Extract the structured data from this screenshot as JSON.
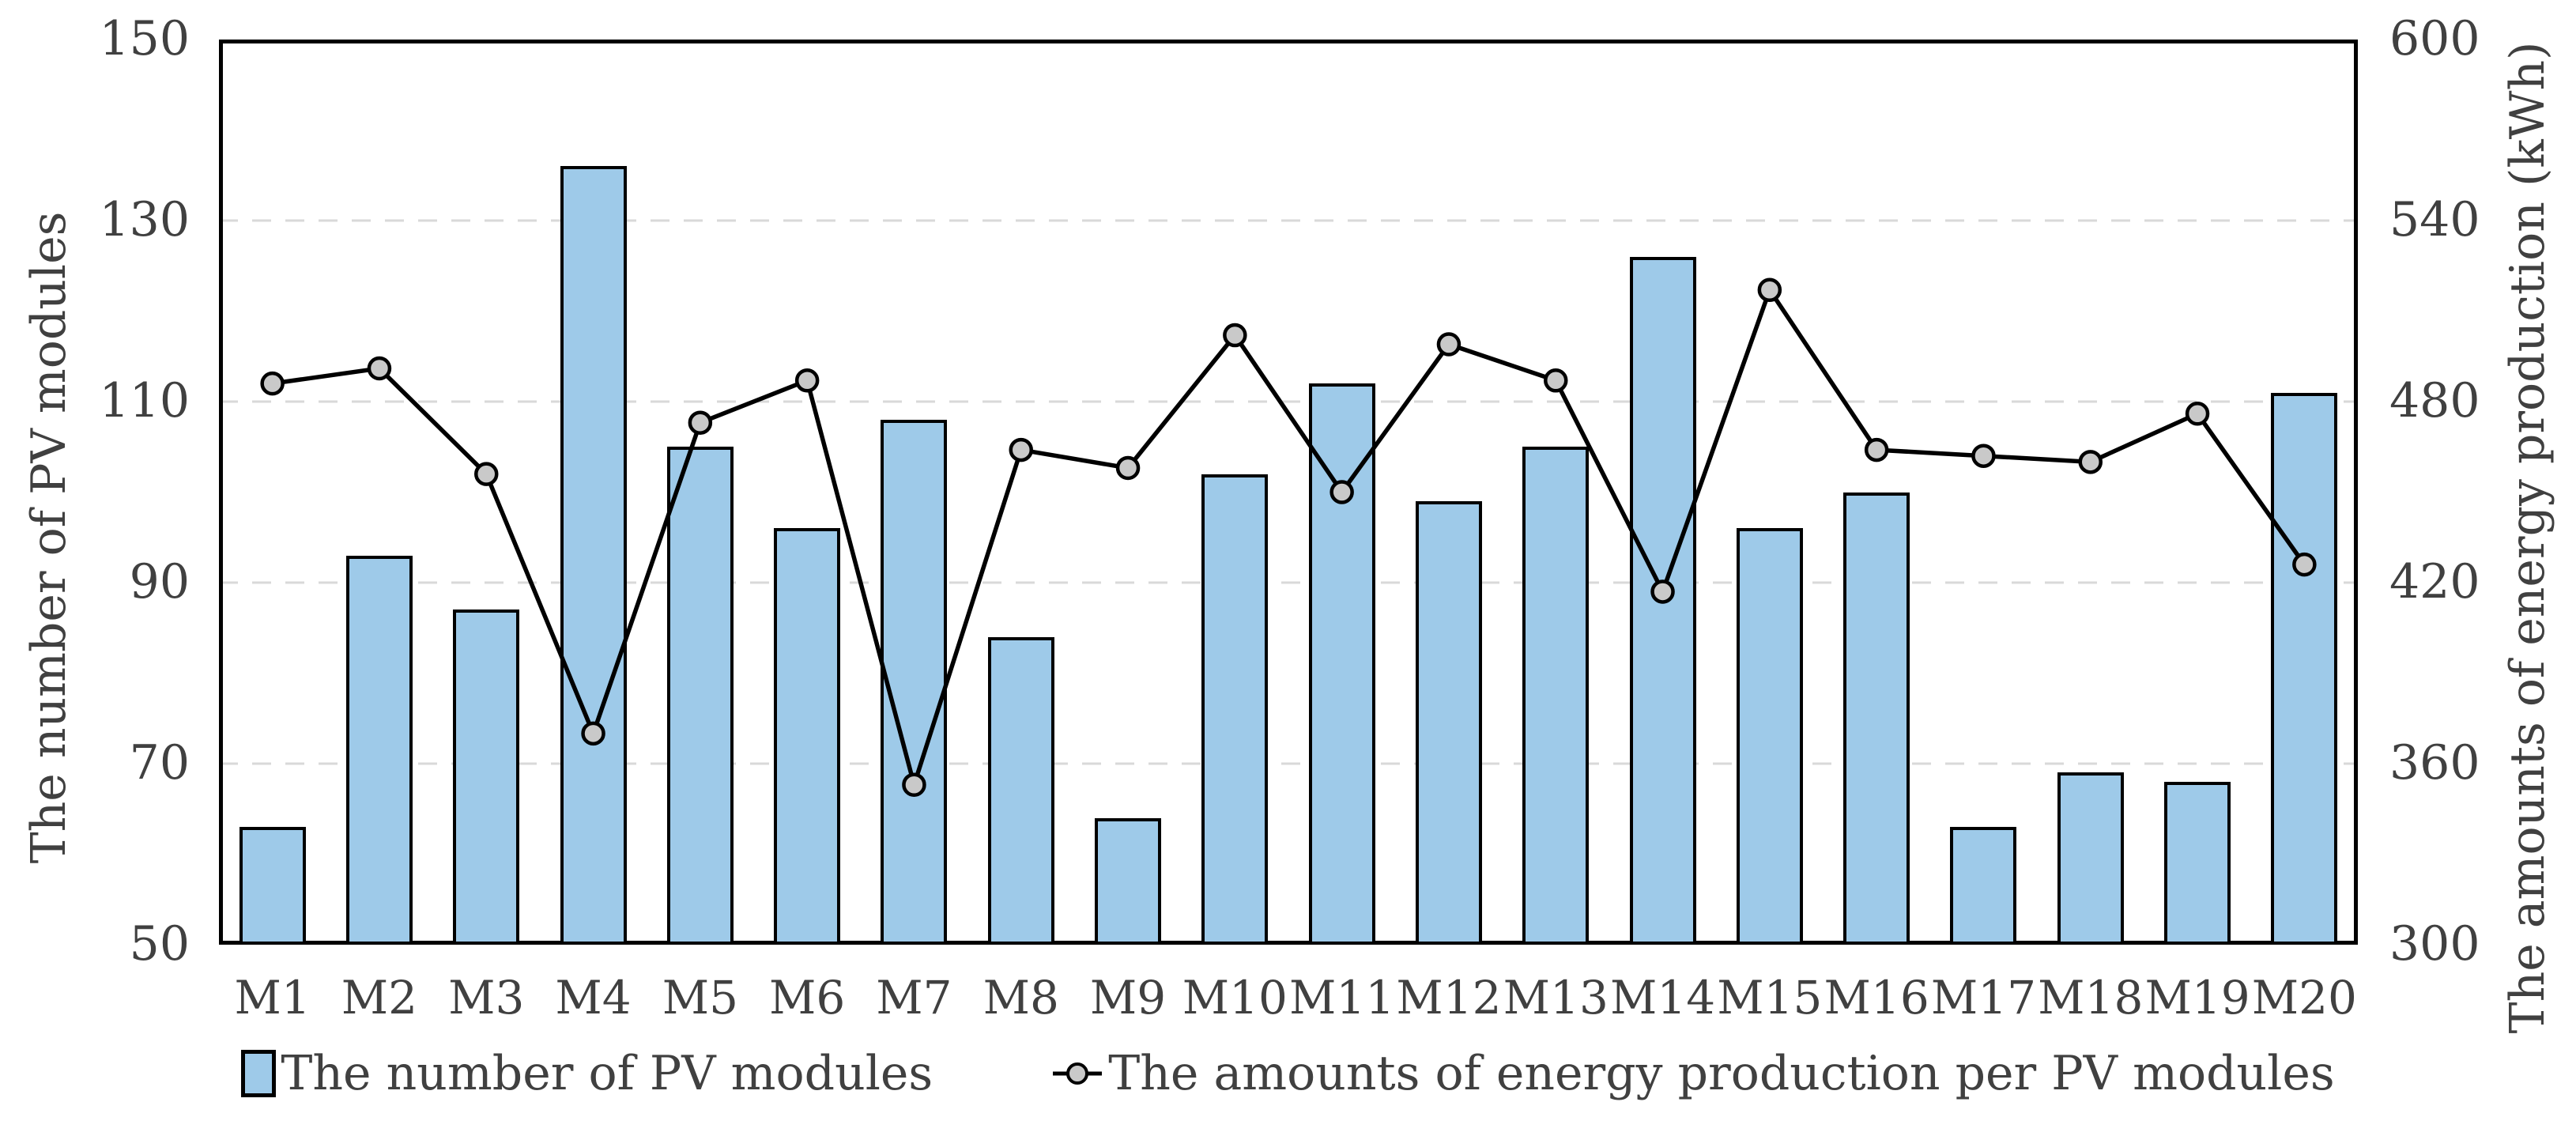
{
  "chart_data": {
    "type": "combo-bar-line",
    "categories": [
      "M1",
      "M2",
      "M3",
      "M4",
      "M5",
      "M6",
      "M7",
      "M8",
      "M9",
      "M10",
      "M11",
      "M12",
      "M13",
      "M14",
      "M15",
      "M16",
      "M17",
      "M18",
      "M19",
      "M20"
    ],
    "series": [
      {
        "name": "The number of PV modules",
        "type": "bar",
        "axis": "left",
        "values": [
          63,
          93,
          87,
          136,
          105,
          96,
          108,
          84,
          64,
          102,
          112,
          99,
          105,
          126,
          96,
          100,
          63,
          69,
          68,
          111
        ]
      },
      {
        "name": "The amounts of energy production per PV modules",
        "type": "line",
        "axis": "right",
        "values": [
          486,
          491,
          456,
          370,
          473,
          487,
          353,
          464,
          458,
          502,
          450,
          499,
          487,
          417,
          517,
          464,
          462,
          460,
          476,
          426
        ]
      }
    ],
    "left_axis": {
      "label": "The number of PV modules",
      "min": 50,
      "max": 150,
      "tick_step": 20,
      "ticks": [
        "150",
        "130",
        "110",
        "90",
        "70",
        "50"
      ]
    },
    "right_axis": {
      "label": "The amounts of energy production (kWh)",
      "min": 300,
      "max": 600,
      "tick_step": 60,
      "ticks": [
        "600",
        "540",
        "480",
        "420",
        "360",
        "300"
      ]
    },
    "gridlines": {
      "style": "dashed",
      "at_left_values": [
        130,
        110,
        90,
        70
      ]
    },
    "legend_position": "bottom"
  },
  "colors": {
    "bar_fill": "#9ECAE9",
    "bar_border": "#000000",
    "line": "#000000",
    "marker_fill": "#C9C9C9",
    "marker_border": "#000000",
    "grid": "#D9D9D9",
    "text": "#404040",
    "background": "#FFFFFF"
  }
}
